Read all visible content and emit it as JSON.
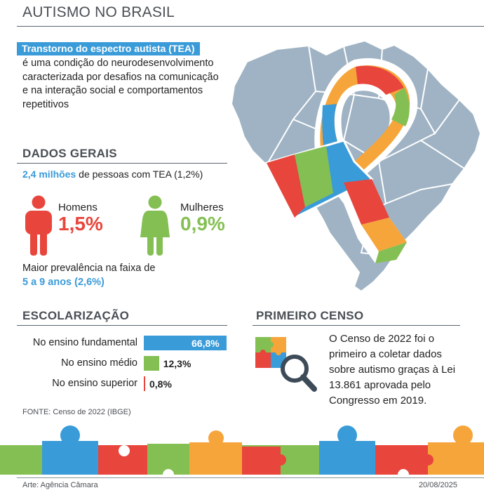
{
  "header": {
    "title": "AUTISMO NO BRASIL"
  },
  "intro": {
    "term": "Transtorno do espectro autista (TEA)",
    "description": "é uma condição do neurodesenvolvimento caracterizada por desafios na comunicação e na interação social e comportamentos repetitivos"
  },
  "dados_gerais": {
    "heading": "DADOS GERAIS",
    "total_highlight": "2,4 milhões",
    "total_rest": " de pessoas com TEA  (1,2%)",
    "men_label": "Homens",
    "men_value": "1,5%",
    "women_label": "Mulheres",
    "women_value": "0,9%",
    "age_line1": "Maior prevalência na faixa de",
    "age_line2": "5 a 9 anos (2,6%)"
  },
  "colors": {
    "blue": "#3a9bd9",
    "red": "#e8453c",
    "green": "#84bf53",
    "orange": "#f6a53a",
    "map": "#9fb3c4",
    "text": "#4a4f55"
  },
  "chart_data": {
    "type": "bar",
    "title": "ESCOLARIZAÇÃO",
    "categories": [
      "No ensino fundamental",
      "No ensino médio",
      "No ensino superior"
    ],
    "values": [
      66.8,
      12.3,
      0.8
    ],
    "value_labels": [
      "66,8%",
      "12,3%",
      "0,8%"
    ],
    "colors": [
      "#3a9bd9",
      "#84bf53",
      "#e8453c"
    ],
    "xlim": [
      0,
      66.8
    ],
    "grid": false
  },
  "censo": {
    "heading": "PRIMEIRO CENSO",
    "text": "O Censo de 2022 foi o primeiro a coletar dados sobre autismo graças à Lei 13.861 aprovada pelo Congresso em 2019."
  },
  "source": "FONTE: Censo de 2022 (IBGE)",
  "footer": {
    "credit": "Arte: Agência Câmara",
    "date": "20/08/2025"
  },
  "icons": [
    "male-person-icon",
    "female-person-icon",
    "puzzle-magnifier-icon",
    "awareness-ribbon-icon",
    "brazil-map"
  ]
}
